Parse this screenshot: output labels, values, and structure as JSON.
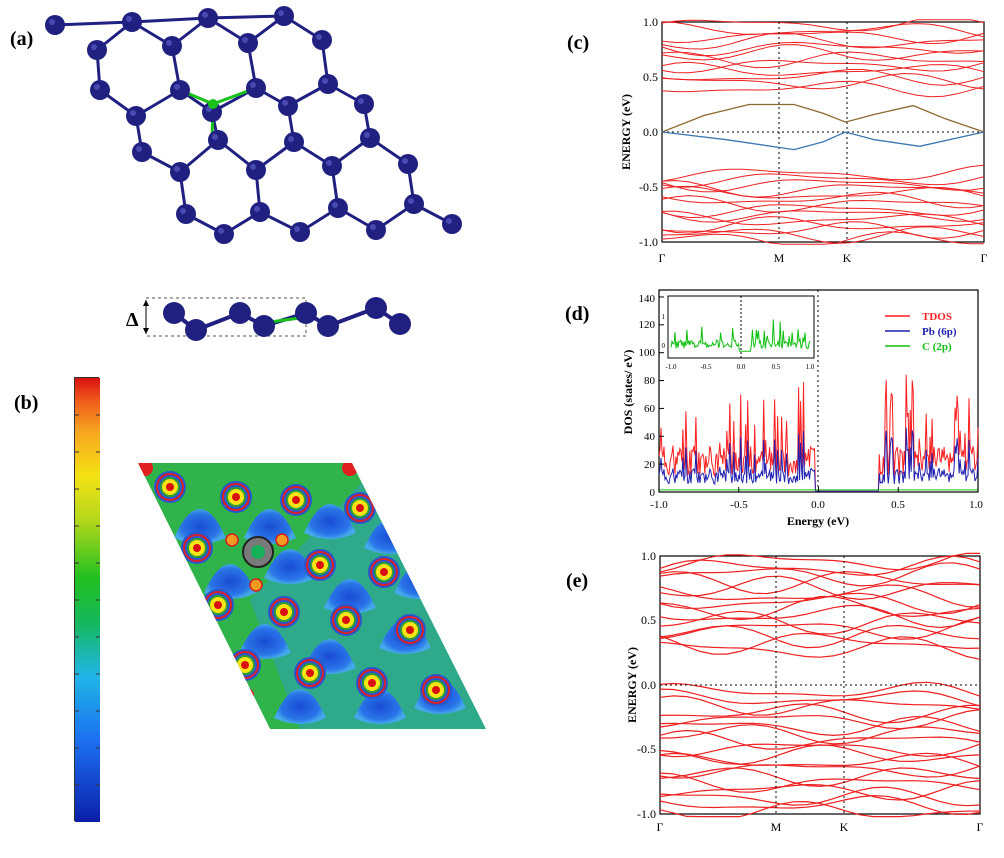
{
  "figure": {
    "panel_labels": {
      "a": "(a)",
      "b": "(b)",
      "c": "(c)",
      "d": "(d)",
      "e": "(e)"
    },
    "delta_symbol": "Δ",
    "atom_color": "#1f2080",
    "dopant_color": "#19c219",
    "colorbar_colors": [
      "#0b1fa8",
      "#1c6ef0",
      "#20b6e6",
      "#16b85c",
      "#22c020",
      "#b4d81c",
      "#f4e214",
      "#f7a520",
      "#ef5a1c",
      "#d81010"
    ]
  },
  "chart_data": [
    {
      "panel": "(c)",
      "type": "line",
      "ylabel": "ENERGY (eV)",
      "ylim": [
        -1.0,
        1.0
      ],
      "yticks": [
        "1.0",
        "0.5",
        "0.0",
        "-0.5",
        "-1.0"
      ],
      "x_kpoints": [
        "Γ",
        "M",
        "K",
        "Γ"
      ],
      "series": [
        {
          "color": "#8b6a2d",
          "x": [
            0.0,
            0.13,
            0.27,
            0.41,
            0.5,
            0.57,
            0.66,
            0.78,
            0.88,
            1.0
          ],
          "y": [
            0.0,
            0.15,
            0.25,
            0.25,
            0.17,
            0.09,
            0.16,
            0.24,
            0.12,
            0.0
          ]
        },
        {
          "color": "#3a77b3",
          "x": [
            0.0,
            0.2,
            0.41,
            0.5,
            0.57,
            0.66,
            0.8,
            1.0
          ],
          "y": [
            0.0,
            -0.07,
            -0.16,
            -0.09,
            0.0,
            -0.07,
            -0.13,
            0.0
          ]
        }
      ]
    },
    {
      "panel": "(d)",
      "type": "line",
      "xlabel": "Energy (eV)",
      "ylabel": "DOS (states/ eV)",
      "xlim": [
        -1.0,
        1.0
      ],
      "ylim": [
        0,
        145
      ],
      "xticks": [
        "-1.0",
        "-0.5",
        "0.0",
        "0.5",
        "1.0"
      ],
      "yticks": [
        "0",
        "20",
        "40",
        "60",
        "80",
        "100",
        "120",
        "140"
      ],
      "legend_position": "top-right",
      "series": [
        {
          "name": "TDOS",
          "color": "#ff2020"
        },
        {
          "name": "Pb (6p)",
          "color": "#2020b0"
        },
        {
          "name": "C (2p)",
          "color": "#10c010"
        }
      ],
      "inset": {
        "xticks": [
          "-1.0",
          "-0.5",
          "0.0",
          "0.5",
          "1.0"
        ],
        "yticks": [
          "1",
          "0"
        ],
        "series_color": "#10c010"
      }
    },
    {
      "panel": "(e)",
      "type": "line",
      "ylabel": "ENERGY (eV)",
      "ylim": [
        -1.0,
        1.0
      ],
      "yticks": [
        "1.0",
        "0.5",
        "0.0",
        "-0.5",
        "-1.0"
      ],
      "x_kpoints": [
        "Γ",
        "M",
        "K",
        "Γ"
      ]
    }
  ]
}
